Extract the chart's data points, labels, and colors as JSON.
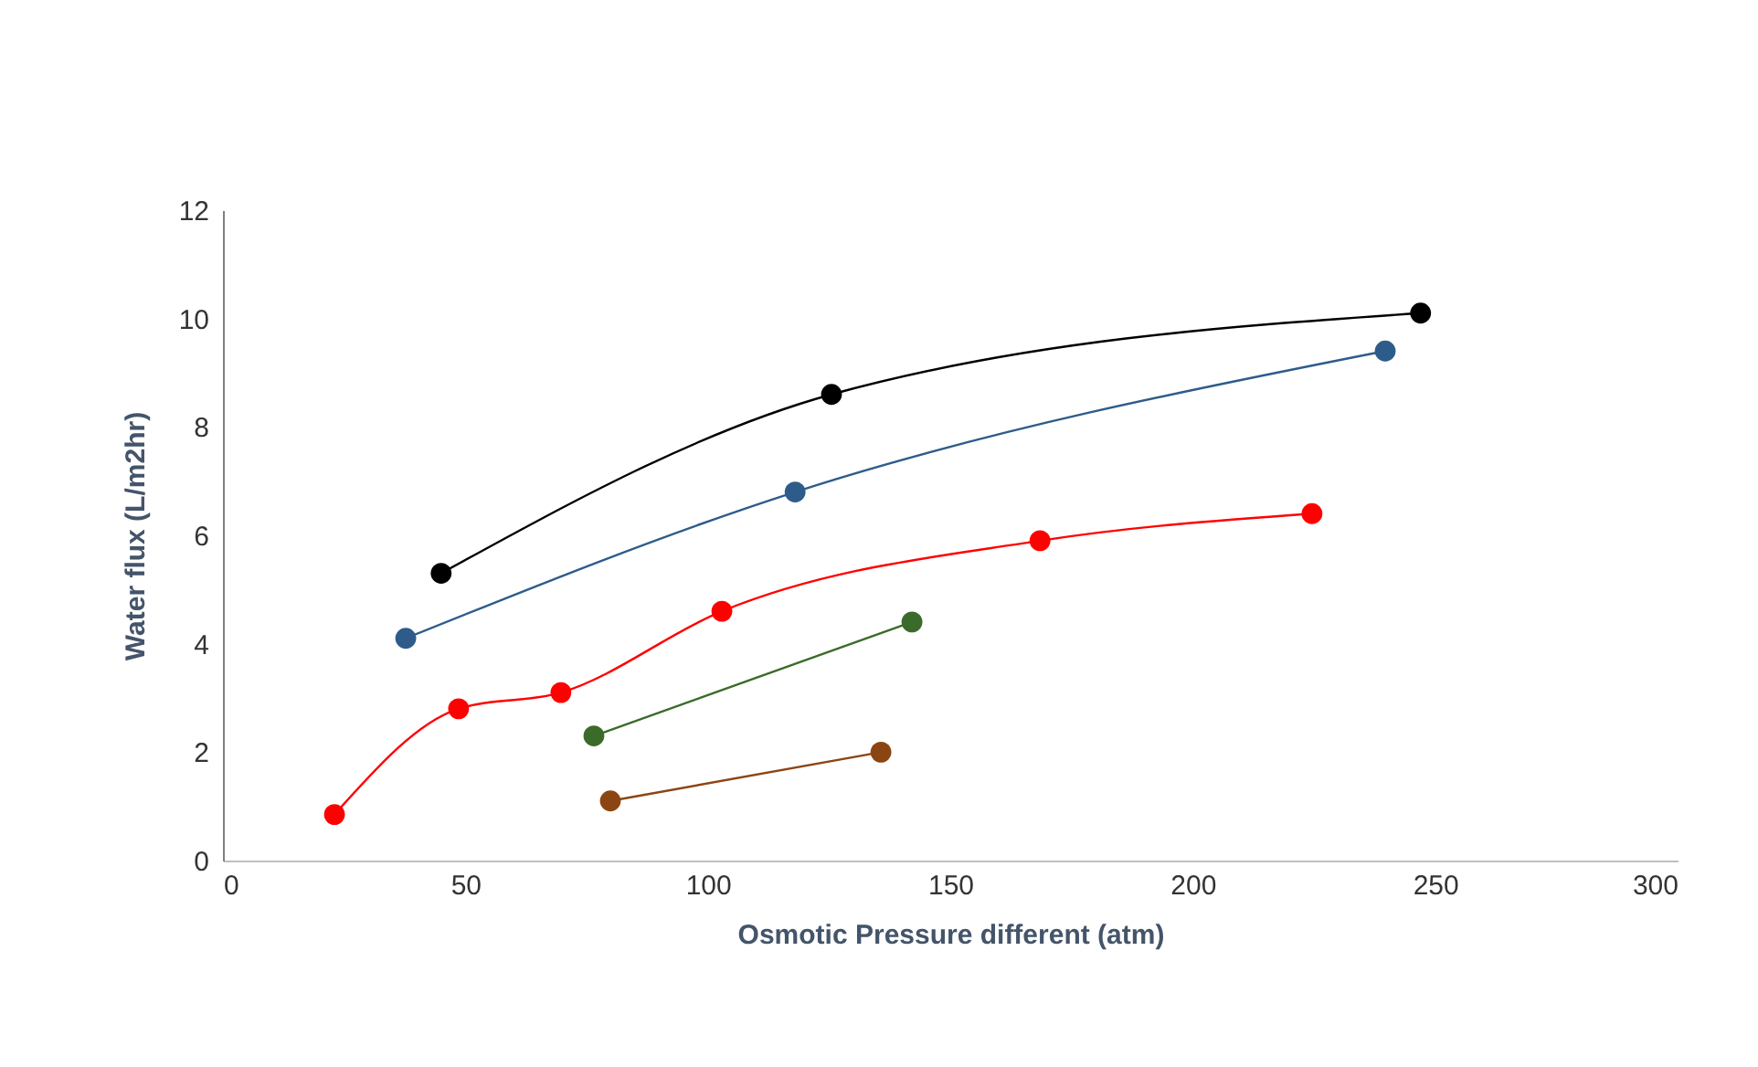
{
  "chart_data": {
    "type": "line",
    "xlabel": "Osmotic Pressure different (atm)",
    "ylabel": "Water flux (L/m2hr)",
    "xlim": [
      0,
      300
    ],
    "xticks": [
      0,
      50,
      100,
      150,
      200,
      250,
      300
    ],
    "ylim": [
      0,
      12
    ],
    "yticks": [
      0,
      2,
      4,
      6,
      8,
      10,
      12
    ],
    "grid": false,
    "marker": "circle",
    "line_style": "solid",
    "series": [
      {
        "color": "#000000",
        "x": [
          45,
          125.5,
          247
        ],
        "values": [
          5.3,
          8.6,
          10.1
        ]
      },
      {
        "color": "#2e5c8a",
        "x": [
          37.7,
          118,
          239.7
        ],
        "values": [
          4.1,
          6.8,
          9.4
        ]
      },
      {
        "color": "#ff0000",
        "x": [
          23,
          48.6,
          69.7,
          102.9,
          168.5,
          224.6
        ],
        "values": [
          0.85,
          2.8,
          3.1,
          4.6,
          5.9,
          6.4
        ]
      },
      {
        "color": "#3b6b2a",
        "x": [
          76.5,
          142.1
        ],
        "values": [
          2.3,
          4.4
        ]
      },
      {
        "color": "#8b4513",
        "x": [
          79.9,
          135.7
        ],
        "values": [
          1.1,
          2.0
        ]
      }
    ]
  }
}
